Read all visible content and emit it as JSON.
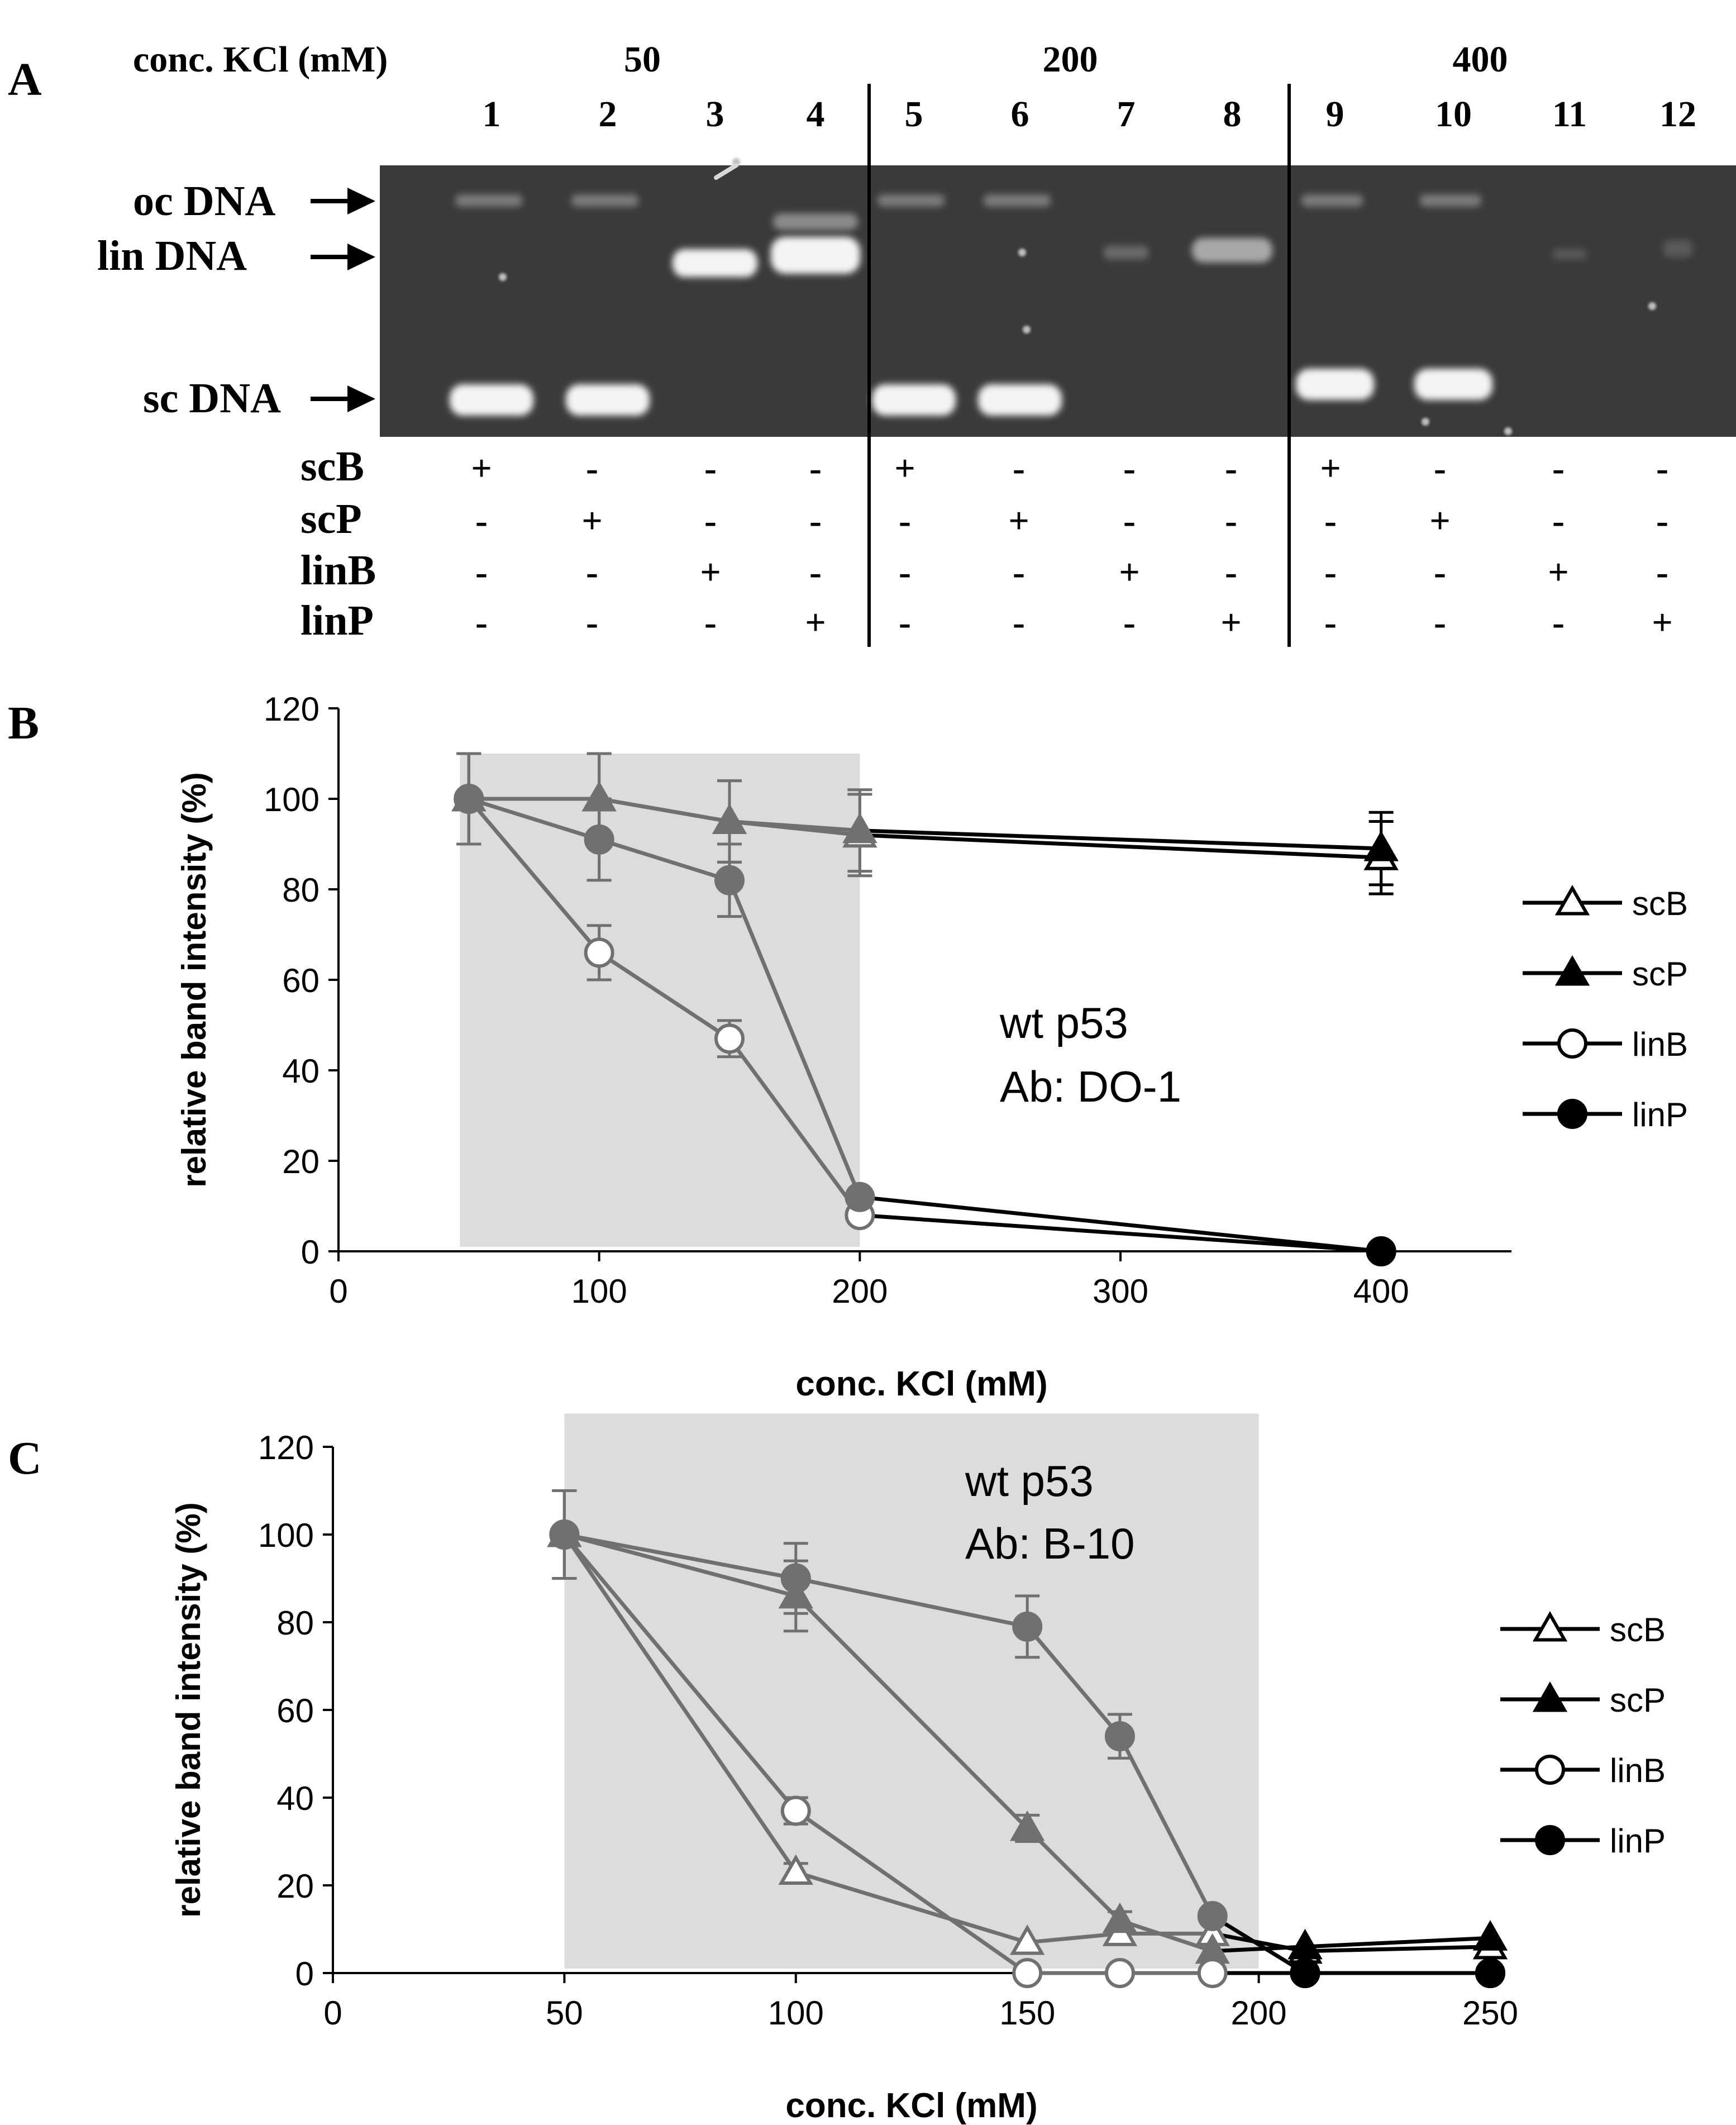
{
  "panelA": {
    "panel_label": "A",
    "conc_label": "conc. KCl (mM)",
    "groups": [
      "50",
      "200",
      "400"
    ],
    "lanes": [
      "1",
      "2",
      "3",
      "4",
      "5",
      "6",
      "7",
      "8",
      "9",
      "10",
      "11",
      "12"
    ],
    "band_labels": {
      "oc": "oc DNA",
      "lin": "lin DNA",
      "sc": "sc DNA"
    },
    "row_labels": [
      "scB",
      "scP",
      "linB",
      "linP"
    ],
    "signs": [
      [
        "+",
        "-",
        "-",
        "-",
        "+",
        "-",
        "-",
        "-",
        "+",
        "-",
        "-",
        "-"
      ],
      [
        "-",
        "+",
        "-",
        "-",
        "-",
        "+",
        "-",
        "-",
        "-",
        "+",
        "-",
        "-"
      ],
      [
        "-",
        "-",
        "+",
        "-",
        "-",
        "-",
        "+",
        "-",
        "-",
        "-",
        "+",
        "-"
      ],
      [
        "-",
        "-",
        "-",
        "+",
        "-",
        "-",
        "-",
        "+",
        "-",
        "-",
        "-",
        "+"
      ]
    ],
    "gel_colors": {
      "background": "#3a3a3a",
      "band": "#f4f4f4"
    }
  },
  "panelB": {
    "panel_label": "B",
    "annotation": [
      "wt p53",
      "Ab: DO-1"
    ],
    "legend": [
      "scB",
      "scP",
      "linB",
      "linP"
    ]
  },
  "panelC": {
    "panel_label": "C",
    "annotation": [
      "wt p53",
      "Ab: B-10"
    ],
    "legend": [
      "scB",
      "scP",
      "linB",
      "linP"
    ]
  },
  "chart_data": [
    {
      "type": "line",
      "panel": "B",
      "xlabel": "conc. KCl (mM)",
      "ylabel": "relative band intensity (%)",
      "xlim": [
        0,
        450
      ],
      "ylim": [
        0,
        120
      ],
      "xticks": [
        0,
        100,
        200,
        300,
        400
      ],
      "yticks": [
        0,
        20,
        40,
        60,
        80,
        100,
        120
      ],
      "shaded_region_x": [
        50,
        200
      ],
      "legend_position": "right",
      "series": [
        {
          "name": "scB",
          "marker": "open-triangle",
          "x": [
            50,
            100,
            150,
            200,
            400
          ],
          "y": [
            100,
            100,
            95,
            92,
            87
          ],
          "err": [
            10,
            10,
            9,
            9,
            8
          ]
        },
        {
          "name": "scP",
          "marker": "filled-triangle",
          "x": [
            50,
            100,
            150,
            200,
            400
          ],
          "y": [
            100,
            100,
            95,
            93,
            89
          ],
          "err": [
            10,
            10,
            9,
            9,
            8
          ]
        },
        {
          "name": "linB",
          "marker": "open-circle",
          "x": [
            50,
            100,
            150,
            200,
            400
          ],
          "y": [
            100,
            66,
            47,
            8,
            0
          ],
          "err": [
            10,
            6,
            4,
            0,
            0
          ]
        },
        {
          "name": "linP",
          "marker": "filled-circle",
          "x": [
            50,
            100,
            150,
            200,
            400
          ],
          "y": [
            100,
            91,
            82,
            12,
            0
          ],
          "err": [
            10,
            9,
            8,
            0,
            0
          ]
        }
      ]
    },
    {
      "type": "line",
      "panel": "C",
      "xlabel": "conc. KCl (mM)",
      "ylabel": "relative band intensity (%)",
      "xlim": [
        0,
        250
      ],
      "ylim": [
        0,
        120
      ],
      "xticks": [
        0,
        50,
        100,
        150,
        200,
        250
      ],
      "yticks": [
        0,
        20,
        40,
        60,
        80,
        100,
        120
      ],
      "shaded_region_x": [
        50,
        200
      ],
      "legend_position": "right",
      "series": [
        {
          "name": "scB",
          "marker": "open-triangle",
          "x": [
            50,
            100,
            150,
            170,
            190,
            210,
            250
          ],
          "y": [
            100,
            23,
            7,
            9,
            9,
            5,
            6
          ],
          "err": [
            10,
            2,
            0,
            0,
            0,
            0,
            0
          ]
        },
        {
          "name": "scP",
          "marker": "filled-triangle",
          "x": [
            50,
            100,
            150,
            170,
            190,
            210,
            250
          ],
          "y": [
            100,
            86,
            33,
            12,
            5,
            6,
            8
          ],
          "err": [
            10,
            8,
            3,
            2,
            0,
            0,
            0
          ]
        },
        {
          "name": "linB",
          "marker": "open-circle",
          "x": [
            50,
            100,
            150,
            170,
            190,
            210,
            250
          ],
          "y": [
            100,
            37,
            0,
            0,
            0,
            0,
            0
          ],
          "err": [
            10,
            3,
            0,
            0,
            0,
            0,
            0
          ]
        },
        {
          "name": "linP",
          "marker": "filled-circle",
          "x": [
            50,
            100,
            150,
            170,
            190,
            210,
            250
          ],
          "y": [
            100,
            90,
            79,
            54,
            13,
            0,
            0
          ],
          "err": [
            10,
            8,
            7,
            5,
            0,
            0,
            0
          ]
        }
      ]
    }
  ]
}
